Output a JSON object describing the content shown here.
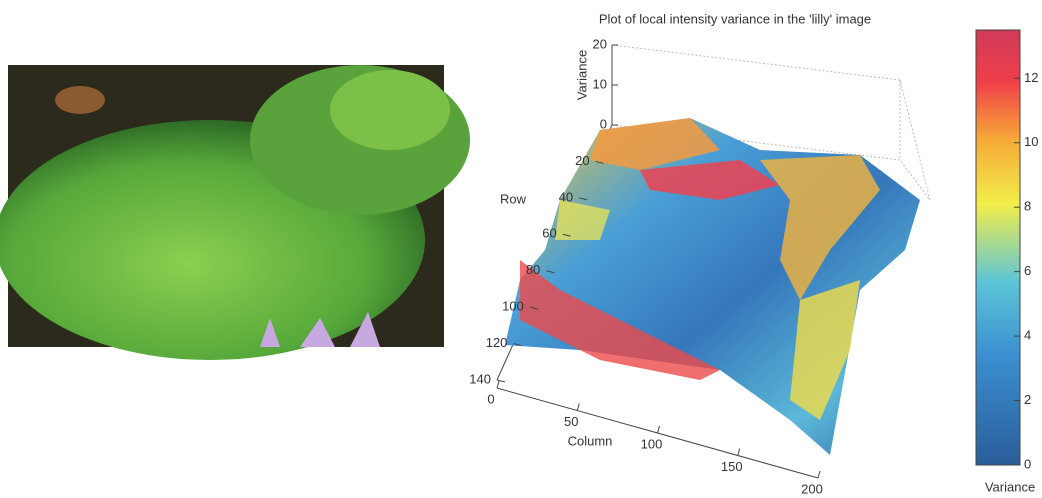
{
  "chart_data": {
    "type": "surface",
    "title": "Plot of local intensity variance in the 'lilly' image",
    "zlabel": "Variance",
    "ylabel": "Row",
    "xlabel": "Column",
    "zlim": [
      0,
      20
    ],
    "zticks": [
      0,
      10,
      20
    ],
    "ylim": [
      0,
      140
    ],
    "yticks": [
      20,
      40,
      60,
      80,
      100,
      120,
      140
    ],
    "xlim": [
      0,
      200
    ],
    "xticks": [
      0,
      50,
      100,
      150,
      200
    ],
    "colorbar": {
      "label": "Variance",
      "lim": [
        0,
        13.5
      ],
      "ticks": [
        0,
        2,
        4,
        6,
        8,
        10,
        12
      ]
    }
  }
}
